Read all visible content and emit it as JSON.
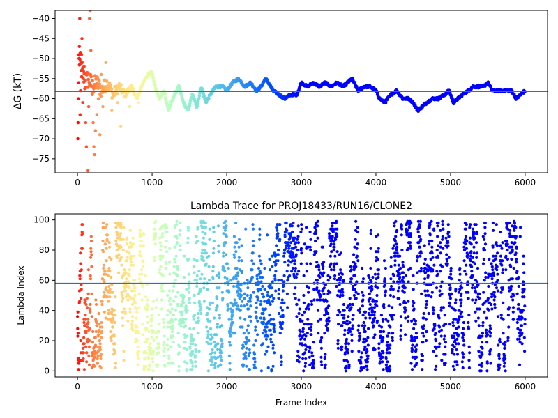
{
  "chart_data": [
    {
      "type": "scatter",
      "title": "",
      "xlabel": "",
      "ylabel": "ΔG (kT)",
      "xlim": [
        -300,
        6300
      ],
      "ylim": [
        -78.5,
        -38
      ],
      "xticks": [
        0,
        1000,
        2000,
        3000,
        4000,
        5000,
        6000
      ],
      "yticks": [
        -75,
        -70,
        -65,
        -60,
        -55,
        -50,
        -45,
        -40
      ],
      "hline": -58.2,
      "grid": false,
      "legend": "none",
      "colormap": "rainbow",
      "trend_points": [
        [
          20,
          -50
        ],
        [
          60,
          -53
        ],
        [
          100,
          -56
        ],
        [
          150,
          -55
        ],
        [
          200,
          -57
        ],
        [
          260,
          -56
        ],
        [
          320,
          -58
        ],
        [
          400,
          -56
        ],
        [
          480,
          -59
        ],
        [
          560,
          -57
        ],
        [
          640,
          -59
        ],
        [
          720,
          -57
        ],
        [
          800,
          -60
        ],
        [
          880,
          -56
        ],
        [
          950,
          -54
        ],
        [
          990,
          -53
        ],
        [
          1040,
          -57
        ],
        [
          1100,
          -60
        ],
        [
          1160,
          -58
        ],
        [
          1220,
          -63
        ],
        [
          1300,
          -59
        ],
        [
          1360,
          -57
        ],
        [
          1420,
          -61
        ],
        [
          1480,
          -63
        ],
        [
          1540,
          -59
        ],
        [
          1600,
          -62
        ],
        [
          1660,
          -57
        ],
        [
          1720,
          -61
        ],
        [
          1780,
          -59
        ],
        [
          1850,
          -57
        ],
        [
          1950,
          -57
        ],
        [
          2000,
          -58
        ],
        [
          2080,
          -56
        ],
        [
          2160,
          -55
        ],
        [
          2240,
          -57
        ],
        [
          2320,
          -56
        ],
        [
          2400,
          -58
        ],
        [
          2460,
          -57
        ],
        [
          2520,
          -55
        ],
        [
          2560,
          -56
        ],
        [
          2620,
          -58
        ],
        [
          2700,
          -59
        ],
        [
          2780,
          -60
        ],
        [
          2860,
          -59
        ],
        [
          2940,
          -59
        ],
        [
          3000,
          -56
        ],
        [
          3080,
          -57
        ],
        [
          3160,
          -56
        ],
        [
          3240,
          -57
        ],
        [
          3320,
          -56
        ],
        [
          3400,
          -57
        ],
        [
          3480,
          -56
        ],
        [
          3560,
          -57
        ],
        [
          3620,
          -56
        ],
        [
          3680,
          -55
        ],
        [
          3760,
          -58
        ],
        [
          3840,
          -57
        ],
        [
          3920,
          -57
        ],
        [
          4000,
          -58
        ],
        [
          4050,
          -60
        ],
        [
          4120,
          -61
        ],
        [
          4200,
          -59
        ],
        [
          4280,
          -58
        ],
        [
          4360,
          -60
        ],
        [
          4440,
          -60
        ],
        [
          4500,
          -61
        ],
        [
          4560,
          -63
        ],
        [
          4620,
          -62
        ],
        [
          4680,
          -61
        ],
        [
          4760,
          -60
        ],
        [
          4840,
          -60
        ],
        [
          4920,
          -59
        ],
        [
          4980,
          -58
        ],
        [
          5040,
          -61
        ],
        [
          5100,
          -60
        ],
        [
          5160,
          -59
        ],
        [
          5240,
          -58
        ],
        [
          5300,
          -57
        ],
        [
          5360,
          -57
        ],
        [
          5440,
          -57
        ],
        [
          5500,
          -56
        ],
        [
          5560,
          -58
        ],
        [
          5620,
          -58
        ],
        [
          5700,
          -58
        ],
        [
          5760,
          -58
        ],
        [
          5820,
          -58
        ],
        [
          5880,
          -60
        ],
        [
          5940,
          -59
        ],
        [
          6000,
          -58
        ]
      ],
      "early_scatter": [
        [
          5,
          -70
        ],
        [
          8,
          -66
        ],
        [
          12,
          -60
        ],
        [
          15,
          -56
        ],
        [
          20,
          -50
        ],
        [
          25,
          -47
        ],
        [
          30,
          -40
        ],
        [
          35,
          -64
        ],
        [
          40,
          -58
        ],
        [
          50,
          -53
        ],
        [
          55,
          -49
        ],
        [
          60,
          -45
        ],
        [
          70,
          -61
        ],
        [
          80,
          -55
        ],
        [
          90,
          -52
        ],
        [
          110,
          -66
        ],
        [
          120,
          -72
        ],
        [
          140,
          -78
        ],
        [
          150,
          -62
        ],
        [
          160,
          -40
        ],
        [
          170,
          -38
        ],
        [
          180,
          -48
        ],
        [
          200,
          -59
        ],
        [
          210,
          -66
        ],
        [
          220,
          -72
        ],
        [
          230,
          -74
        ],
        [
          240,
          -68
        ],
        [
          260,
          -64
        ],
        [
          280,
          -60
        ],
        [
          300,
          -69
        ],
        [
          320,
          -54
        ],
        [
          340,
          -62
        ],
        [
          380,
          -51
        ],
        [
          420,
          -58
        ],
        [
          460,
          -63
        ],
        [
          500,
          -57
        ],
        [
          540,
          -61
        ],
        [
          580,
          -67
        ],
        [
          620,
          -58
        ],
        [
          700,
          -62
        ],
        [
          760,
          -59
        ],
        [
          820,
          -61
        ]
      ]
    },
    {
      "type": "scatter",
      "title": "Lambda Trace for PROJ18433/RUN16/CLONE2",
      "xlabel": "Frame Index",
      "ylabel": "Lambda Index",
      "xlim": [
        -300,
        6300
      ],
      "ylim": [
        -4,
        104
      ],
      "xticks": [
        0,
        1000,
        2000,
        3000,
        4000,
        5000,
        6000
      ],
      "yticks": [
        0,
        20,
        40,
        60,
        80,
        100
      ],
      "hline": 58,
      "grid": false,
      "legend": "none",
      "colormap": "rainbow",
      "n_points": 6000,
      "y_range": [
        0,
        99
      ]
    }
  ],
  "colors": {
    "hline": "#1f77b4",
    "axis": "#000000",
    "rainbow_stops": [
      "#ff0000",
      "#ff7f0e",
      "#ffff00",
      "#80ff80",
      "#00ffff",
      "#0080ff",
      "#4040ff",
      "#8000ff"
    ]
  }
}
